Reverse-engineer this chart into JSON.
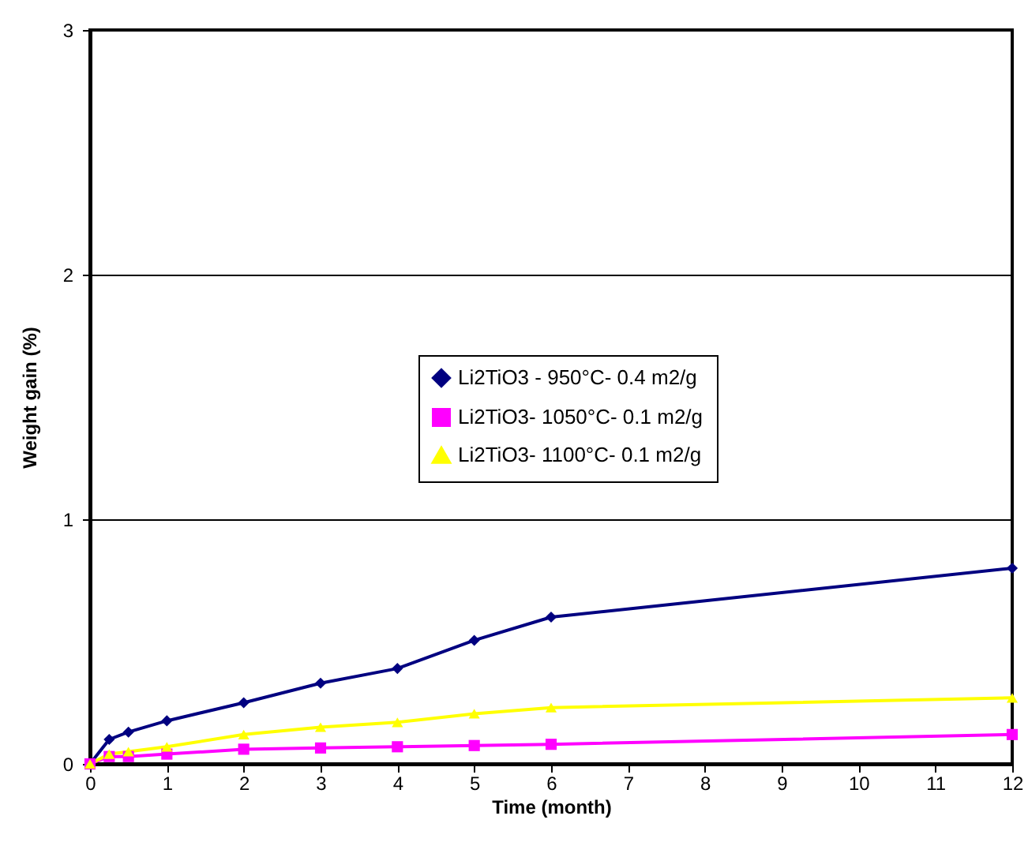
{
  "chart_data": {
    "type": "line",
    "xlabel": "Time (month)",
    "ylabel": "Weight gain (%)",
    "xlim": [
      0,
      12
    ],
    "xticks": [
      0,
      1,
      2,
      3,
      4,
      5,
      6,
      7,
      8,
      9,
      10,
      11,
      12
    ],
    "ylim": [
      0,
      3
    ],
    "yticks": [
      0,
      1,
      2,
      3
    ],
    "grid": "y",
    "legend": "center",
    "series": [
      {
        "name": "Li2TiO3 - 950°C- 0.4 m2/g",
        "color": "#000080",
        "marker": "diamond",
        "x": [
          0,
          0.25,
          0.5,
          1,
          2,
          3,
          4,
          5,
          6,
          12
        ],
        "values": [
          0,
          0.1,
          0.13,
          0.176,
          0.25,
          0.33,
          0.39,
          0.505,
          0.6,
          0.8
        ]
      },
      {
        "name": "Li2TiO3- 1050°C- 0.1 m2/g",
        "color": "#ff00ff",
        "marker": "square",
        "x": [
          0,
          0.25,
          0.5,
          1,
          2,
          3,
          4,
          5,
          6,
          12
        ],
        "values": [
          0,
          0.03,
          0.03,
          0.04,
          0.06,
          0.065,
          0.07,
          0.075,
          0.08,
          0.12
        ]
      },
      {
        "name": "Li2TiO3- 1100°C- 0.1 m2/g",
        "color": "#ffff00",
        "marker": "triangle",
        "x": [
          0,
          0.25,
          0.5,
          1,
          2,
          3,
          4,
          5,
          6,
          12
        ],
        "values": [
          0,
          0.04,
          0.05,
          0.07,
          0.12,
          0.15,
          0.17,
          0.205,
          0.23,
          0.27
        ]
      }
    ]
  }
}
